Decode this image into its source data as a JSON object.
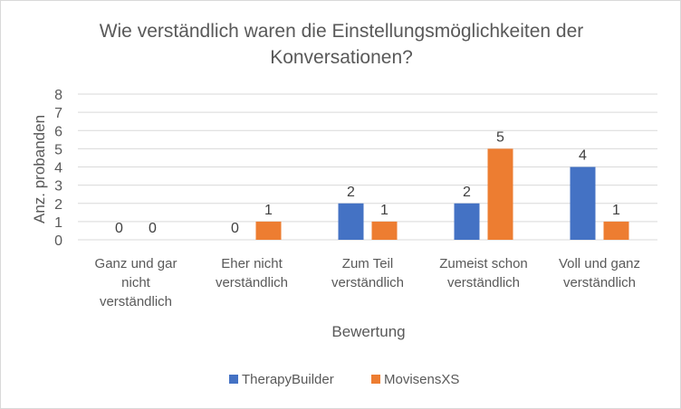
{
  "chart_data": {
    "type": "bar",
    "title_lines": [
      "Wie verständlich waren die Einstellungsmöglichkeiten der",
      "Konversationen?"
    ],
    "xlabel": "Bewertung",
    "ylabel": "Anz. probanden",
    "ylim": [
      0,
      8
    ],
    "yticks": [
      "0",
      "1",
      "2",
      "3",
      "4",
      "5",
      "6",
      "7",
      "8"
    ],
    "grid": true,
    "legend_position": "bottom",
    "categories": [
      [
        "Ganz und gar",
        "nicht",
        "verständlich"
      ],
      [
        "Eher nicht",
        "verständlich"
      ],
      [
        "Zum Teil",
        "verständlich"
      ],
      [
        "Zumeist schon",
        "verständlich"
      ],
      [
        "Voll und ganz",
        "verständlich"
      ]
    ],
    "series": [
      {
        "name": "TherapyBuilder",
        "color": "#4472c4",
        "values": [
          0,
          0,
          2,
          2,
          4
        ],
        "labels": [
          "0",
          "0",
          "2",
          "2",
          "4"
        ]
      },
      {
        "name": "MovisensXS",
        "color": "#ed7d31",
        "values": [
          0,
          1,
          1,
          5,
          1
        ],
        "labels": [
          "0",
          "1",
          "1",
          "5",
          "1"
        ]
      }
    ]
  }
}
